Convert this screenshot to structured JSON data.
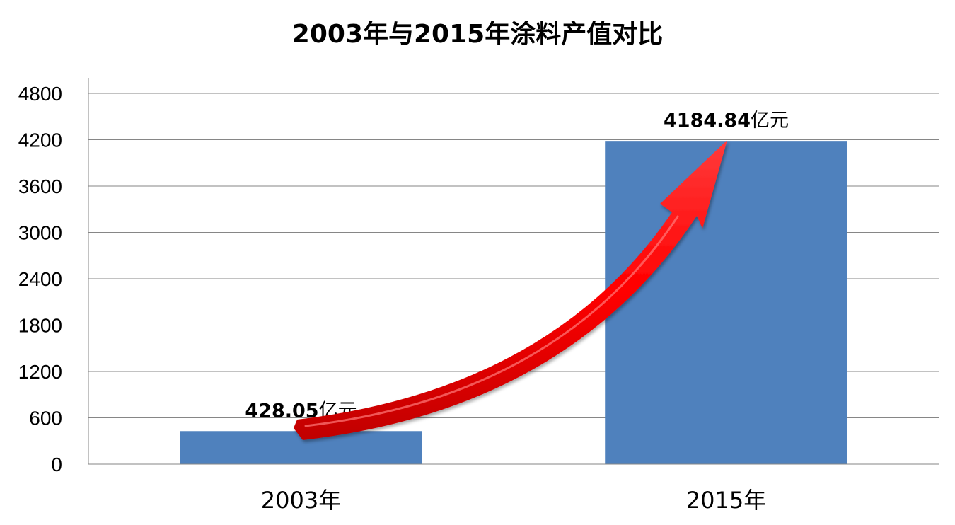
{
  "chart_data": {
    "type": "bar",
    "title": "2003年与2015年涂料产值对比",
    "categories": [
      "2003年",
      "2015年"
    ],
    "values": [
      428.05,
      4184.84
    ],
    "data_labels": [
      {
        "number": "428.05",
        "unit": "亿元"
      },
      {
        "number": "4184.84",
        "unit": "亿元"
      }
    ],
    "ylim": [
      0,
      4800
    ],
    "y_ticks": [
      0,
      600,
      1200,
      1800,
      2400,
      3000,
      3600,
      4200,
      4800
    ],
    "grid": true,
    "legend": "none",
    "colors": {
      "bar": "#4F81BD",
      "gridline": "#868686",
      "arrow": "#FF0000"
    },
    "annotations": [
      "red-growth-arrow"
    ]
  }
}
